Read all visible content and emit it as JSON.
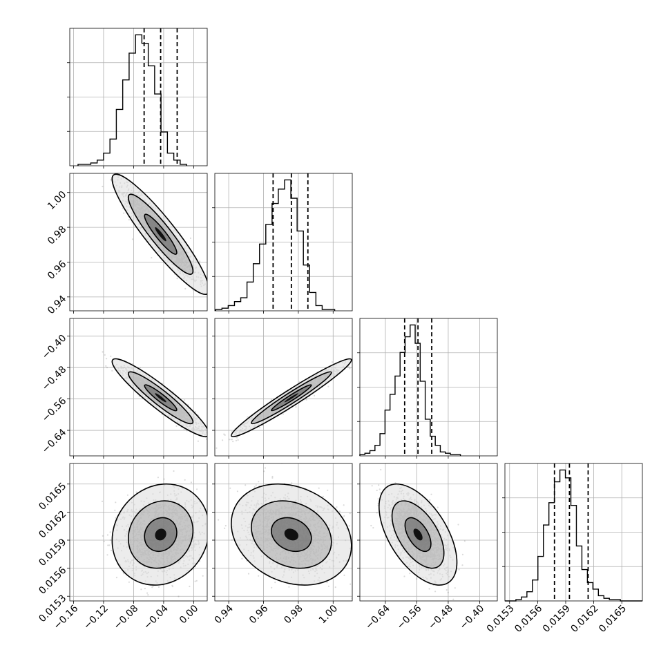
{
  "chart_data": {
    "type": "corner",
    "parameters": [
      {
        "label": "",
        "range": [
          -0.165,
          0.018
        ],
        "ticks": [
          -0.16,
          -0.12,
          -0.08,
          -0.04,
          0.0
        ],
        "tick_labels": [
          "−0.16",
          "−0.12",
          "−0.08",
          "−0.04",
          "0.00"
        ],
        "quantiles": [
          -0.066,
          -0.044,
          -0.022
        ],
        "hist_start": -0.154,
        "hist_bin": 0.0085,
        "hist_counts": [
          1,
          1,
          2,
          4,
          9,
          19,
          40,
          61,
          80,
          93,
          87,
          71,
          51,
          24,
          9,
          4,
          1
        ]
      },
      {
        "label": "",
        "range": [
          0.932,
          1.011
        ],
        "ticks": [
          0.94,
          0.96,
          0.98,
          1.0
        ],
        "tick_labels": [
          "0.94",
          "0.96",
          "0.98",
          "1.00"
        ],
        "quantiles": [
          0.9655,
          0.976,
          0.9855
        ],
        "hist_start": 0.9325,
        "hist_bin": 0.0036,
        "hist_counts": [
          1,
          2,
          4,
          7,
          10,
          22,
          36,
          51,
          66,
          82,
          93,
          100,
          86,
          61,
          35,
          14,
          4,
          1,
          1
        ]
      },
      {
        "label": "",
        "range": [
          -0.705,
          -0.355
        ],
        "ticks": [
          -0.64,
          -0.56,
          -0.48,
          -0.4
        ],
        "tick_labels": [
          "−0.64",
          "−0.56",
          "−0.48",
          "−0.40"
        ],
        "quantiles": [
          -0.591,
          -0.557,
          -0.522
        ],
        "hist_start": -0.705,
        "hist_bin": 0.0128,
        "hist_counts": [
          1,
          2,
          4,
          8,
          17,
          35,
          47,
          61,
          79,
          91,
          100,
          86,
          57,
          28,
          15,
          8,
          3,
          2,
          1,
          1
        ]
      },
      {
        "label": "",
        "range": [
          0.01525,
          0.01672
        ],
        "ticks": [
          0.0153,
          0.0156,
          0.0159,
          0.0162,
          0.0165
        ],
        "tick_labels": [
          "0.0153",
          "0.0156",
          "0.0159",
          "0.0162",
          "0.0165"
        ],
        "quantiles": [
          0.01578,
          0.01594,
          0.01614
        ],
        "hist_start": 0.01525,
        "hist_bin": 5.88e-05,
        "hist_counts": [
          0,
          0,
          1,
          3,
          7,
          16,
          34,
          58,
          75,
          91,
          100,
          94,
          73,
          42,
          24,
          14,
          9,
          4,
          2,
          1,
          1,
          0,
          0,
          0,
          0
        ]
      }
    ],
    "pairs": [
      {
        "x": 0,
        "y": 1,
        "mean": [
          -0.044,
          0.976
        ],
        "sd": [
          0.0215,
          0.0115
        ],
        "rho": -0.92
      },
      {
        "x": 0,
        "y": 2,
        "mean": [
          -0.044,
          -0.557
        ],
        "sd": [
          0.0215,
          0.033
        ],
        "rho": -0.93
      },
      {
        "x": 1,
        "y": 2,
        "mean": [
          0.976,
          -0.557
        ],
        "sd": [
          0.0115,
          0.033
        ],
        "rho": 0.97
      },
      {
        "x": 0,
        "y": 3,
        "mean": [
          -0.044,
          0.01596
        ],
        "sd": [
          0.0215,
          0.00018
        ],
        "rho": 0.12
      },
      {
        "x": 1,
        "y": 3,
        "mean": [
          0.976,
          0.01596
        ],
        "sd": [
          0.0115,
          0.00018
        ],
        "rho": -0.22
      },
      {
        "x": 2,
        "y": 3,
        "mean": [
          -0.557,
          0.01596
        ],
        "sd": [
          0.033,
          0.00018
        ],
        "rho": -0.55
      }
    ],
    "contour_levels": [
      0.393,
      0.865,
      0.989
    ],
    "grid": true,
    "colors": {
      "lines": "#000000",
      "grid": "#b0b0b0",
      "points": "#555555",
      "frame": "#000000"
    }
  }
}
